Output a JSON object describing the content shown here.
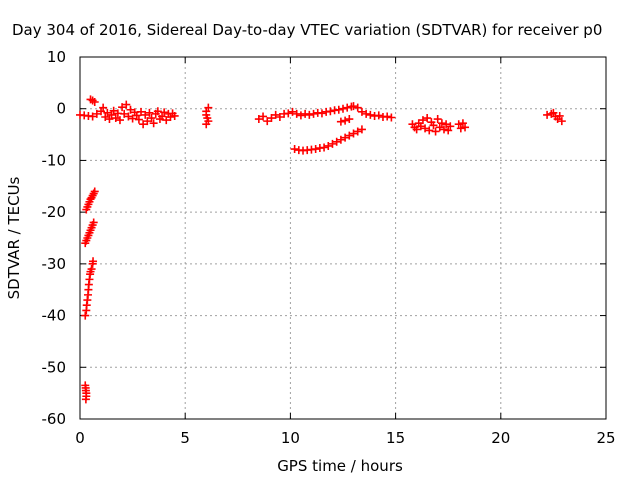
{
  "chart_data": {
    "type": "scatter",
    "title": "Day 304 of 2016, Sidereal Day-to-day VTEC variation (SDTVAR) for receiver p0",
    "xlabel": "GPS time / hours",
    "ylabel": "SDTVAR / TECUs",
    "xlim": [
      0,
      25
    ],
    "ylim": [
      -60,
      10
    ],
    "xticks": [
      "0",
      "5",
      "10",
      "15",
      "20",
      "25"
    ],
    "yticks": [
      "10",
      "0",
      "-10",
      "-20",
      "-30",
      "-40",
      "-50",
      "-60"
    ],
    "grid": true,
    "marker": "plus",
    "color": "#ff0000",
    "series": [
      {
        "points": [
          [
            0.0,
            -1.2
          ],
          [
            0.2,
            -1.3
          ],
          [
            0.4,
            -1.4
          ],
          [
            0.6,
            -1.5
          ],
          [
            0.5,
            1.8
          ],
          [
            0.6,
            1.6
          ],
          [
            0.7,
            1.3
          ],
          [
            0.8,
            -1.0
          ],
          [
            1.0,
            -0.5
          ],
          [
            1.1,
            0.2
          ],
          [
            1.2,
            -1.6
          ],
          [
            1.3,
            -0.8
          ],
          [
            1.4,
            -2.0
          ],
          [
            1.5,
            -1.2
          ],
          [
            1.6,
            -0.4
          ],
          [
            1.7,
            -1.8
          ],
          [
            1.8,
            -0.9
          ],
          [
            1.9,
            -2.2
          ],
          [
            2.0,
            0.3
          ],
          [
            2.1,
            -1.0
          ],
          [
            2.2,
            0.8
          ],
          [
            2.3,
            -1.5
          ],
          [
            2.4,
            -0.2
          ],
          [
            2.5,
            -1.9
          ],
          [
            2.6,
            -0.7
          ],
          [
            2.7,
            -1.3
          ],
          [
            2.8,
            -2.1
          ],
          [
            2.9,
            -0.6
          ],
          [
            3.0,
            -3.0
          ],
          [
            3.1,
            -1.2
          ],
          [
            3.2,
            -2.4
          ],
          [
            3.3,
            -0.8
          ],
          [
            3.4,
            -1.8
          ],
          [
            3.5,
            -2.8
          ],
          [
            3.6,
            -1.0
          ],
          [
            3.7,
            -0.5
          ],
          [
            3.8,
            -2.0
          ],
          [
            3.9,
            -1.5
          ],
          [
            4.0,
            -0.7
          ],
          [
            4.1,
            -2.2
          ],
          [
            4.2,
            -1.0
          ],
          [
            4.3,
            -1.6
          ],
          [
            4.4,
            -0.9
          ],
          [
            4.5,
            -1.4
          ],
          [
            0.3,
            -19.5
          ],
          [
            0.35,
            -19.0
          ],
          [
            0.4,
            -18.5
          ],
          [
            0.45,
            -18.0
          ],
          [
            0.5,
            -17.5
          ],
          [
            0.55,
            -17.2
          ],
          [
            0.6,
            -16.8
          ],
          [
            0.65,
            -16.4
          ],
          [
            0.7,
            -16.0
          ],
          [
            0.25,
            -26.0
          ],
          [
            0.3,
            -25.5
          ],
          [
            0.35,
            -25.0
          ],
          [
            0.4,
            -24.5
          ],
          [
            0.45,
            -24.0
          ],
          [
            0.5,
            -23.5
          ],
          [
            0.55,
            -23.0
          ],
          [
            0.6,
            -22.5
          ],
          [
            0.65,
            -22.0
          ],
          [
            0.25,
            -40.0
          ],
          [
            0.3,
            -39.0
          ],
          [
            0.32,
            -38.0
          ],
          [
            0.35,
            -37.0
          ],
          [
            0.38,
            -36.0
          ],
          [
            0.4,
            -35.0
          ],
          [
            0.42,
            -34.0
          ],
          [
            0.45,
            -33.0
          ],
          [
            0.48,
            -32.0
          ],
          [
            0.5,
            -31.5
          ],
          [
            0.55,
            -31.0
          ],
          [
            0.6,
            -30.0
          ],
          [
            0.62,
            -29.5
          ],
          [
            0.25,
            -53.5
          ],
          [
            0.27,
            -54.0
          ],
          [
            0.28,
            -54.5
          ],
          [
            0.3,
            -55.0
          ],
          [
            0.3,
            -55.6
          ],
          [
            0.28,
            -56.2
          ],
          [
            6.0,
            -0.5
          ],
          [
            6.0,
            -1.2
          ],
          [
            6.05,
            -1.8
          ],
          [
            6.1,
            -2.4
          ],
          [
            6.0,
            -3.0
          ],
          [
            6.1,
            0.2
          ],
          [
            8.5,
            -2.0
          ],
          [
            8.7,
            -1.5
          ],
          [
            8.9,
            -2.4
          ],
          [
            9.1,
            -1.8
          ],
          [
            9.3,
            -1.2
          ],
          [
            9.5,
            -1.6
          ],
          [
            9.7,
            -1.0
          ],
          [
            9.9,
            -0.9
          ],
          [
            10.1,
            -0.6
          ],
          [
            10.3,
            -1.0
          ],
          [
            10.5,
            -1.3
          ],
          [
            10.7,
            -1.0
          ],
          [
            10.9,
            -1.2
          ],
          [
            11.1,
            -1.0
          ],
          [
            11.3,
            -0.8
          ],
          [
            11.5,
            -0.9
          ],
          [
            11.7,
            -0.6
          ],
          [
            11.9,
            -0.5
          ],
          [
            12.1,
            -0.3
          ],
          [
            12.3,
            -0.2
          ],
          [
            12.5,
            0.0
          ],
          [
            12.7,
            0.2
          ],
          [
            12.9,
            0.4
          ],
          [
            13.0,
            0.5
          ],
          [
            13.2,
            0.2
          ],
          [
            13.4,
            -0.6
          ],
          [
            13.6,
            -1.0
          ],
          [
            13.8,
            -1.2
          ],
          [
            14.0,
            -1.4
          ],
          [
            14.2,
            -1.3
          ],
          [
            14.4,
            -1.6
          ],
          [
            14.6,
            -1.5
          ],
          [
            14.8,
            -1.7
          ],
          [
            10.2,
            -7.8
          ],
          [
            10.4,
            -8.0
          ],
          [
            10.6,
            -8.1
          ],
          [
            10.8,
            -8.0
          ],
          [
            11.0,
            -7.9
          ],
          [
            11.2,
            -7.8
          ],
          [
            11.4,
            -7.6
          ],
          [
            11.6,
            -7.5
          ],
          [
            11.8,
            -7.2
          ],
          [
            12.0,
            -6.8
          ],
          [
            12.2,
            -6.4
          ],
          [
            12.4,
            -6.0
          ],
          [
            12.6,
            -5.6
          ],
          [
            12.8,
            -5.2
          ],
          [
            13.0,
            -4.8
          ],
          [
            13.2,
            -4.4
          ],
          [
            13.4,
            -4.0
          ],
          [
            12.4,
            -2.5
          ],
          [
            12.6,
            -2.3
          ],
          [
            12.8,
            -2.0
          ],
          [
            15.8,
            -3.0
          ],
          [
            15.9,
            -3.6
          ],
          [
            16.0,
            -4.0
          ],
          [
            16.1,
            -2.8
          ],
          [
            16.2,
            -3.4
          ],
          [
            16.3,
            -2.2
          ],
          [
            16.4,
            -3.8
          ],
          [
            16.5,
            -1.8
          ],
          [
            16.6,
            -4.2
          ],
          [
            16.7,
            -2.6
          ],
          [
            16.8,
            -3.2
          ],
          [
            16.9,
            -4.4
          ],
          [
            17.0,
            -2.0
          ],
          [
            17.1,
            -3.6
          ],
          [
            17.2,
            -2.8
          ],
          [
            17.3,
            -4.0
          ],
          [
            17.4,
            -3.0
          ],
          [
            17.5,
            -4.2
          ],
          [
            17.6,
            -3.4
          ],
          [
            18.0,
            -3.0
          ],
          [
            18.1,
            -3.8
          ],
          [
            18.2,
            -2.8
          ],
          [
            18.3,
            -3.6
          ],
          [
            22.2,
            -1.2
          ],
          [
            22.4,
            -1.0
          ],
          [
            22.5,
            -0.8
          ],
          [
            22.6,
            -1.5
          ],
          [
            22.7,
            -2.0
          ],
          [
            22.8,
            -1.4
          ],
          [
            22.9,
            -2.4
          ]
        ]
      }
    ]
  }
}
